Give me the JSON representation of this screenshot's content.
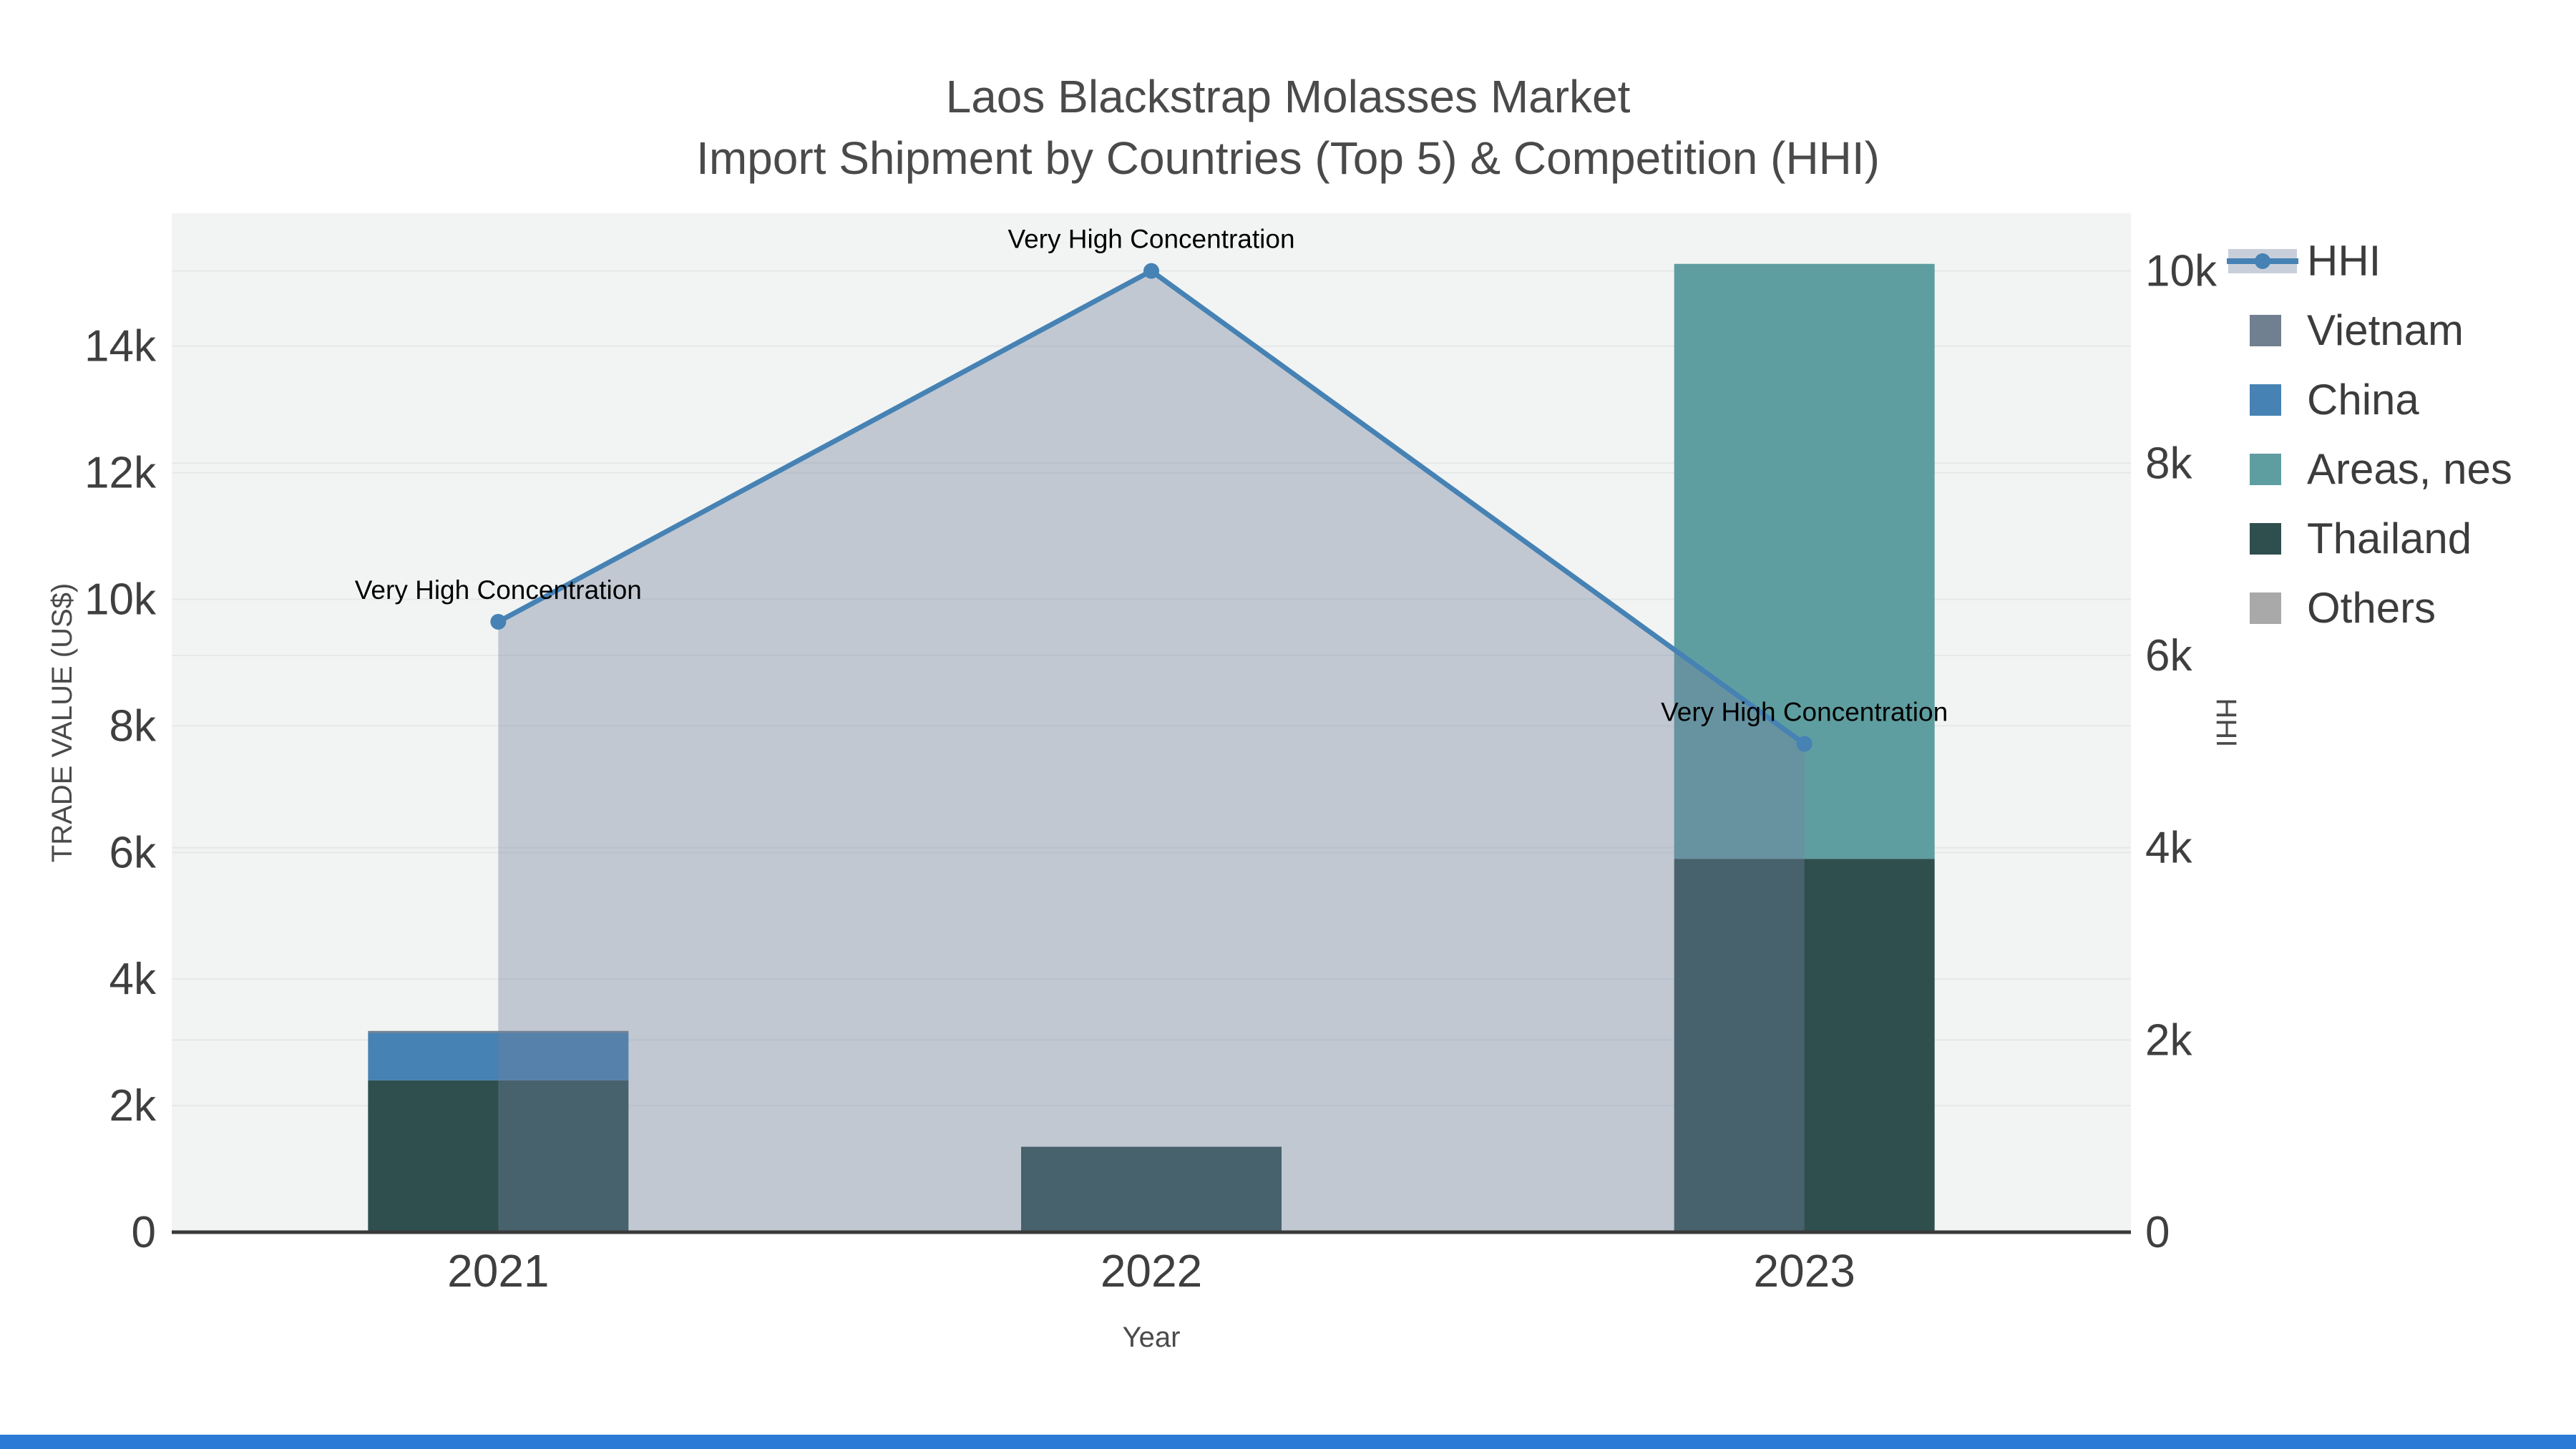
{
  "title": {
    "line1": "Laos Blackstrap Molasses Market",
    "line2": "Import Shipment by Countries (Top 5) & Competition (HHI)"
  },
  "chart_data": {
    "type": "bar+line",
    "categories": [
      "2021",
      "2022",
      "2023"
    ],
    "bar_series": [
      {
        "name": "Vietnam",
        "color": "#708090",
        "values": [
          30,
          0,
          0
        ]
      },
      {
        "name": "China",
        "color": "#4682B4",
        "values": [
          750,
          0,
          0
        ]
      },
      {
        "name": "Areas, nes",
        "color": "#5F9EA0",
        "values": [
          0,
          0,
          9400
        ]
      },
      {
        "name": "Thailand",
        "color": "#2F4F4F",
        "values": [
          2400,
          1350,
          5900
        ]
      },
      {
        "name": "Others",
        "color": "#A9A9A9",
        "values": [
          0,
          0,
          0
        ]
      }
    ],
    "stack_order": [
      "Thailand",
      "China",
      "Vietnam",
      "Areas, nes",
      "Others"
    ],
    "line_series": {
      "name": "HHI",
      "color": "#4682B4",
      "fill_color": "rgba(113,128,158,0.38)",
      "axis": "right",
      "values": [
        6350,
        10000,
        5080
      ]
    },
    "annotations": [
      {
        "text": "Very High Concentration",
        "category": "2021",
        "value": 6350
      },
      {
        "text": "Very High Concentration",
        "category": "2022",
        "value": 10000
      },
      {
        "text": "Very High Concentration",
        "category": "2023",
        "value": 5080
      }
    ],
    "xlabel": "Year",
    "ylabel_left": "TRADE VALUE (US$)",
    "ylabel_right": "HHI",
    "yticks_left": {
      "values": [
        0,
        2000,
        4000,
        6000,
        8000,
        10000,
        12000,
        14000
      ],
      "labels": [
        "0",
        "2k",
        "4k",
        "6k",
        "8k",
        "10k",
        "12k",
        "14k"
      ]
    },
    "yticks_right": {
      "values": [
        0,
        2000,
        4000,
        6000,
        8000,
        10000
      ],
      "labels": [
        "0",
        "2k",
        "4k",
        "6k",
        "8k",
        "10k"
      ]
    },
    "ylim_left": [
      0,
      16100
    ],
    "ylim_right": [
      0,
      10600
    ],
    "grid": "on",
    "legend_position": "right",
    "plot_bg": "#f2f4f3",
    "grid_color": "#e4e8e8",
    "axis_line_color": "#3a3a3a",
    "tick_color": "#3f3f3f",
    "annotation_color": "#000000"
  },
  "legend": {
    "items": [
      {
        "label": "HHI",
        "type": "line",
        "color": "#4682B4"
      },
      {
        "label": "Vietnam",
        "type": "square",
        "color": "#708090"
      },
      {
        "label": "China",
        "type": "square",
        "color": "#4682B4"
      },
      {
        "label": "Areas, nes",
        "type": "square",
        "color": "#5F9EA0"
      },
      {
        "label": "Thailand",
        "type": "square",
        "color": "#2F4F4F"
      },
      {
        "label": "Others",
        "type": "square",
        "color": "#A9A9A9"
      }
    ]
  }
}
